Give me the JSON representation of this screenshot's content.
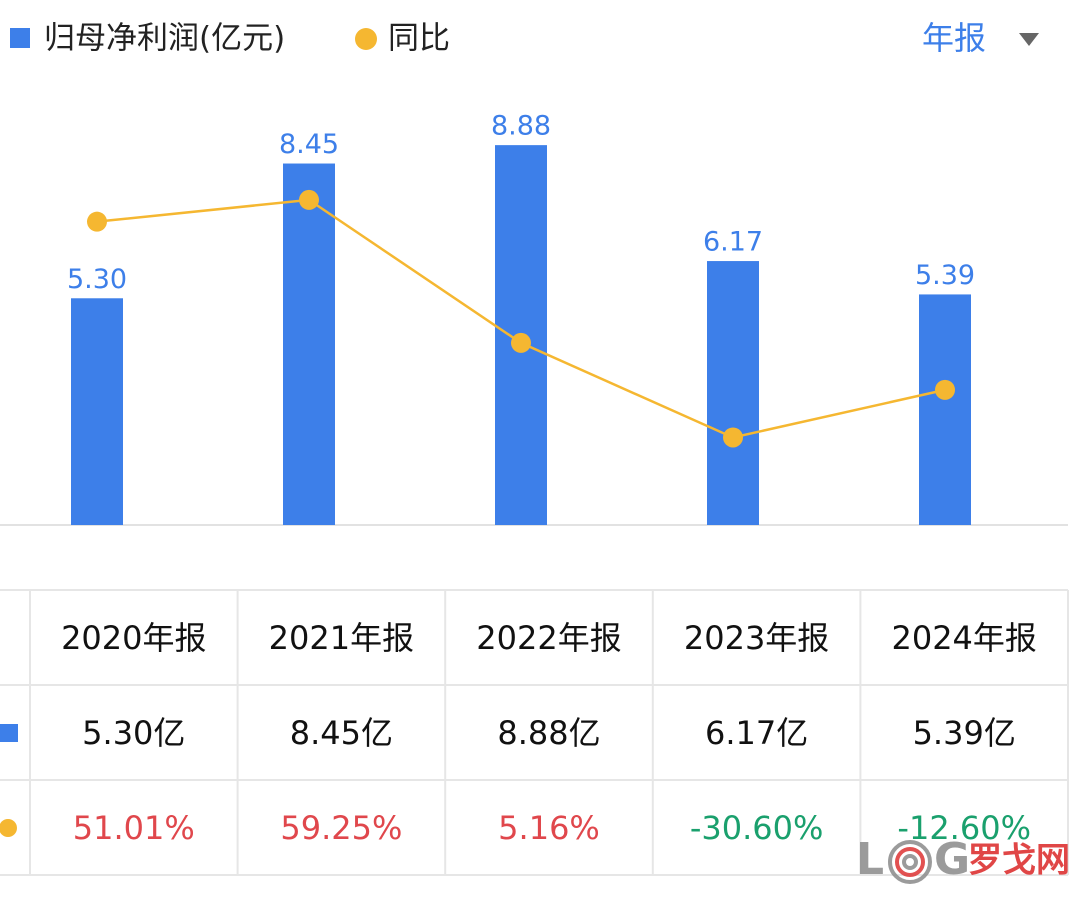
{
  "chart_data": {
    "type": "bar",
    "legend": [
      "归母净利润(亿元)",
      "同比"
    ],
    "period_selector": "年报",
    "categories": [
      "2020年报",
      "2021年报",
      "2022年报",
      "2023年报",
      "2024年报"
    ],
    "series": [
      {
        "name": "归母净利润(亿元)",
        "type": "bar",
        "color": "#3d7fe9",
        "values": [
          5.3,
          8.45,
          8.88,
          6.17,
          5.39
        ],
        "value_labels": [
          "5.30",
          "8.45",
          "8.88",
          "6.17",
          "5.39"
        ]
      },
      {
        "name": "同比",
        "type": "line",
        "axis": "y2",
        "color": "#f5b731",
        "values": [
          51.01,
          59.25,
          5.16,
          -30.6,
          -12.6
        ]
      }
    ],
    "ylim": [
      0,
      9
    ],
    "y2lim": [
      -63.7,
      81.9
    ]
  },
  "table": {
    "rows": [
      [
        "5.30亿",
        "8.45亿",
        "8.88亿",
        "6.17亿",
        "5.39亿"
      ],
      [
        "51.01%",
        "59.25%",
        "5.16%",
        "-30.60%",
        "-12.60%"
      ]
    ]
  },
  "watermark": {
    "left": "L",
    "right": "G",
    "name": "罗戈网"
  }
}
